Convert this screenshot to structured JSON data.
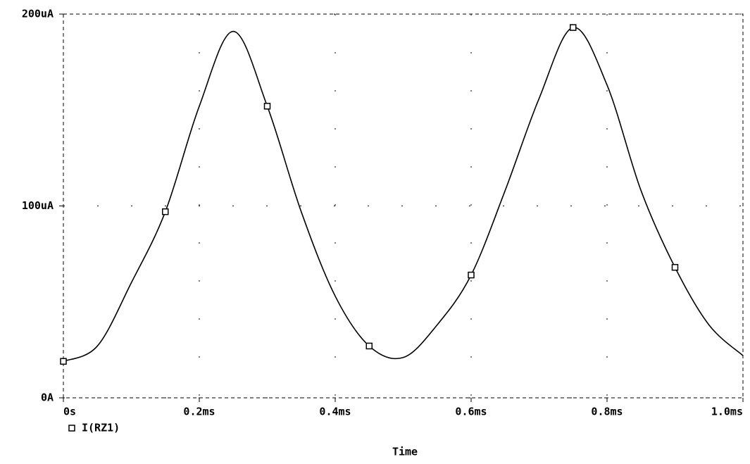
{
  "chart_data": {
    "type": "line",
    "x_label": "Time",
    "x": [
      0,
      0.05,
      0.1,
      0.15,
      0.2,
      0.25,
      0.3,
      0.35,
      0.4,
      0.45,
      0.5,
      0.55,
      0.6,
      0.65,
      0.7,
      0.75,
      0.8,
      0.85,
      0.9,
      0.95,
      1.0
    ],
    "series": [
      {
        "name": "I(RZ1)",
        "color": "#000000",
        "values": [
          19,
          27,
          60,
          97,
          152,
          191,
          152,
          97,
          53,
          27,
          21,
          38,
          64,
          108,
          156,
          193,
          163,
          108,
          68,
          38,
          22
        ]
      }
    ],
    "xlim": [
      0,
      1.0
    ],
    "ylim": [
      0,
      200
    ],
    "xticks": [
      {
        "value": 0,
        "label": "0s"
      },
      {
        "value": 0.2,
        "label": "0.2ms"
      },
      {
        "value": 0.4,
        "label": "0.4ms"
      },
      {
        "value": 0.6,
        "label": "0.6ms"
      },
      {
        "value": 0.8,
        "label": "0.8ms"
      },
      {
        "value": 1.0,
        "label": "1.0ms"
      }
    ],
    "yticks": [
      {
        "value": 0,
        "label": "0A"
      },
      {
        "value": 100,
        "label": "100uA"
      },
      {
        "value": 200,
        "label": "200uA"
      }
    ],
    "grid": true
  }
}
